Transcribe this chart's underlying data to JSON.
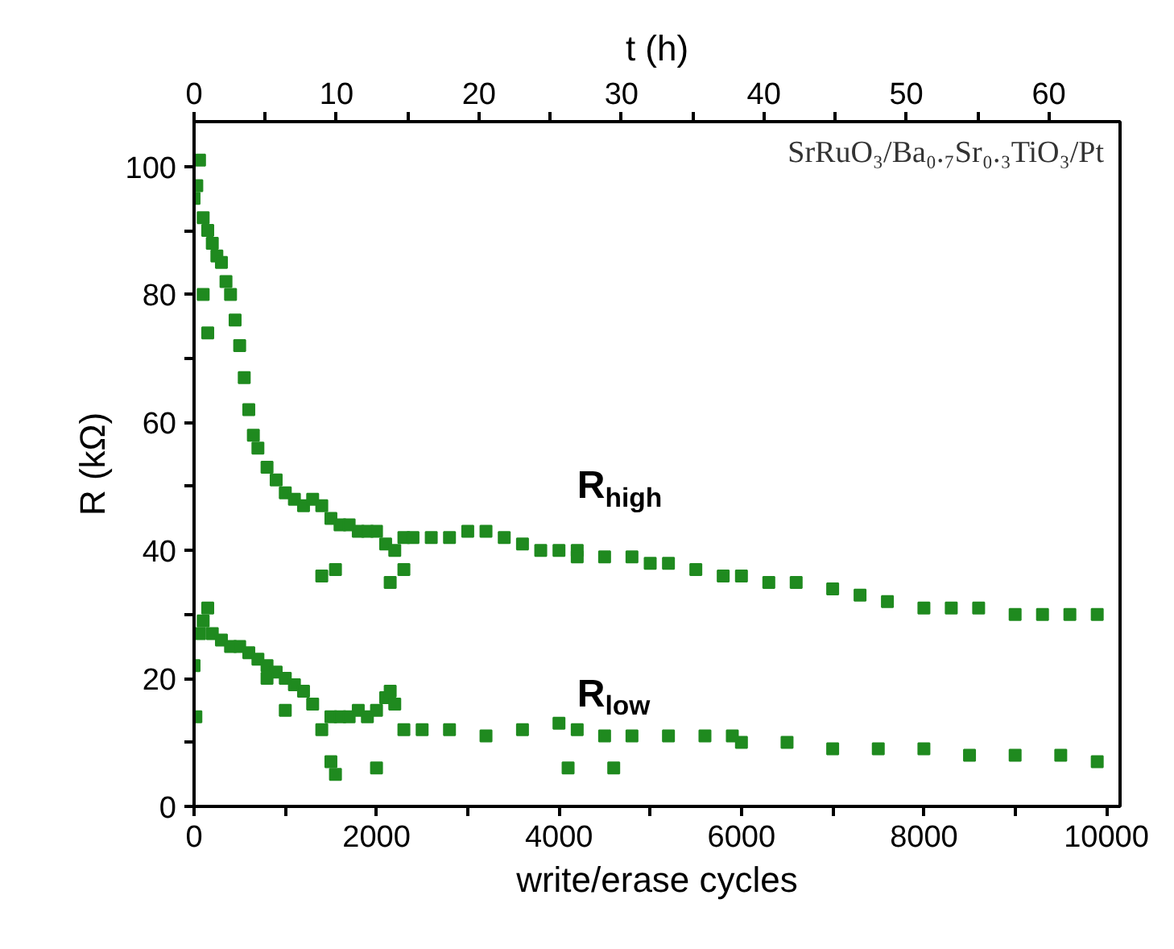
{
  "chart_data": {
    "type": "scatter",
    "xlabel": "write/erase cycles",
    "ylabel": "R (kΩ)",
    "x2label": "t (h)",
    "xlim": [
      0,
      10150
    ],
    "ylim": [
      0,
      107
    ],
    "x2lim": [
      0,
      65
    ],
    "xticks": [
      0,
      {
        "value": 1000,
        "label": null
      },
      2000,
      {
        "value": 3000,
        "label": null
      },
      4000,
      {
        "value": 5000,
        "label": null
      },
      6000,
      {
        "value": 7000,
        "label": null
      },
      8000,
      {
        "value": 9000,
        "label": null
      },
      10000
    ],
    "x2ticks": [
      0,
      {
        "value": 5,
        "label": null
      },
      10,
      {
        "value": 15,
        "label": null
      },
      20,
      {
        "value": 25,
        "label": null
      },
      30,
      {
        "value": 35,
        "label": null
      },
      40,
      {
        "value": 45,
        "label": null
      },
      50,
      {
        "value": 55,
        "label": null
      },
      60
    ],
    "yticks": [
      0,
      {
        "value": 10,
        "label": null
      },
      20,
      {
        "value": 30,
        "label": null
      },
      40,
      {
        "value": 50,
        "label": null
      },
      60,
      {
        "value": 70,
        "label": null
      },
      80,
      {
        "value": 90,
        "label": null
      },
      100
    ],
    "grid": false,
    "marker": "square",
    "annotations": [
      "SrRuO₃/Ba₀.₇Sr₀.₃TiO₃/Pt"
    ],
    "series": [
      {
        "name": "R$_{high}$",
        "color": "#1f8a1f",
        "x": [
          0,
          30,
          60,
          100,
          150,
          200,
          250,
          300,
          350,
          400,
          450,
          500,
          550,
          600,
          650,
          700,
          800,
          900,
          1000,
          1100,
          1200,
          1300,
          1400,
          1500,
          1600,
          1700,
          1800,
          1900,
          2000,
          2100,
          2200,
          2300,
          2400,
          2600,
          2800,
          3000,
          3200,
          3400,
          3600,
          3800,
          4000,
          4200,
          4500,
          4800,
          5000,
          5200,
          5500,
          5800,
          6000,
          6300,
          6600,
          7000,
          7300,
          7600,
          8000,
          8300,
          8600,
          9000,
          9300,
          9600,
          9900,
          100,
          150,
          1400,
          1550,
          2150,
          2300,
          4200
        ],
        "values": [
          95,
          97,
          101,
          92,
          90,
          88,
          86,
          85,
          82,
          80,
          76,
          72,
          67,
          62,
          58,
          56,
          53,
          51,
          49,
          48,
          47,
          48,
          47,
          45,
          44,
          44,
          43,
          43,
          43,
          41,
          40,
          42,
          42,
          42,
          42,
          43,
          43,
          42,
          41,
          40,
          40,
          40,
          39,
          39,
          38,
          38,
          37,
          36,
          36,
          35,
          35,
          34,
          33,
          32,
          31,
          31,
          31,
          30,
          30,
          30,
          30,
          80,
          74,
          36,
          37,
          35,
          37,
          39
        ]
      },
      {
        "name": "R$_{low}$",
        "color": "#1f8a1f",
        "x": [
          0,
          60,
          100,
          150,
          200,
          300,
          400,
          500,
          600,
          700,
          800,
          900,
          1000,
          1100,
          1200,
          1300,
          1400,
          1500,
          1600,
          1700,
          1800,
          1900,
          2000,
          2100,
          2150,
          2200,
          2300,
          2500,
          2800,
          3200,
          3600,
          4000,
          4200,
          4500,
          4800,
          5200,
          5600,
          6000,
          6500,
          7000,
          7500,
          8000,
          8500,
          9000,
          9500,
          9900,
          20,
          800,
          1000,
          1500,
          1550,
          2000,
          4100,
          4600,
          5900
        ],
        "values": [
          22,
          27,
          29,
          31,
          27,
          26,
          25,
          25,
          24,
          23,
          22,
          21,
          20,
          19,
          18,
          16,
          12,
          14,
          14,
          14,
          15,
          14,
          15,
          17,
          18,
          16,
          12,
          12,
          12,
          11,
          12,
          13,
          12,
          11,
          11,
          11,
          11,
          10,
          10,
          9,
          9,
          9,
          8,
          8,
          8,
          7,
          14,
          20,
          15,
          7,
          5,
          6,
          6,
          6,
          11
        ]
      }
    ]
  }
}
